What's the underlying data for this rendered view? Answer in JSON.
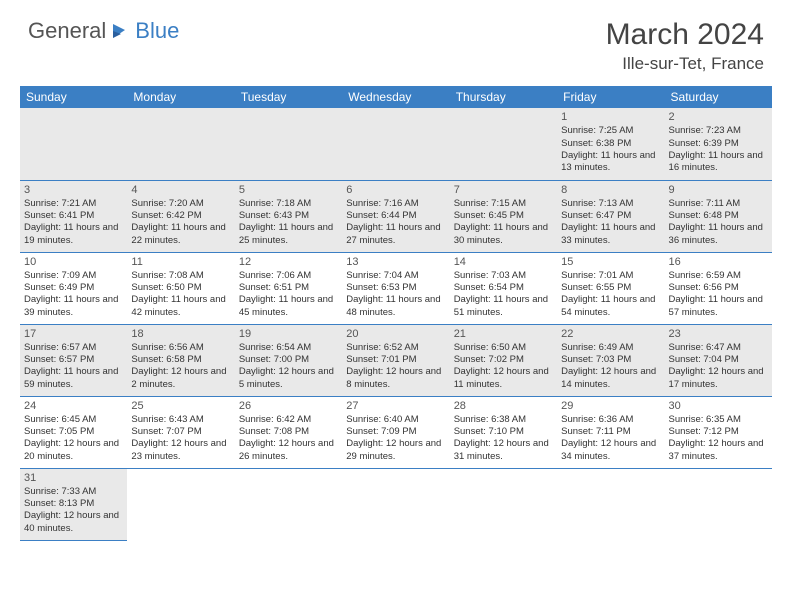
{
  "logo": {
    "part1": "General",
    "part2": "Blue"
  },
  "header": {
    "title": "March 2024",
    "location": "Ille-sur-Tet, France"
  },
  "weekdays": [
    "Sunday",
    "Monday",
    "Tuesday",
    "Wednesday",
    "Thursday",
    "Friday",
    "Saturday"
  ],
  "colors": {
    "accent": "#3b7fc4",
    "header_bg": "#3b7fc4",
    "shade1": "#e9e9e9",
    "shade2": "#f9f9f9"
  },
  "weeks": [
    {
      "shaded": true,
      "days": [
        null,
        null,
        null,
        null,
        null,
        {
          "n": "1",
          "sunrise": "7:25 AM",
          "sunset": "6:38 PM",
          "daylight": "11 hours and 13 minutes."
        },
        {
          "n": "2",
          "sunrise": "7:23 AM",
          "sunset": "6:39 PM",
          "daylight": "11 hours and 16 minutes."
        }
      ]
    },
    {
      "shaded": true,
      "days": [
        {
          "n": "3",
          "sunrise": "7:21 AM",
          "sunset": "6:41 PM",
          "daylight": "11 hours and 19 minutes."
        },
        {
          "n": "4",
          "sunrise": "7:20 AM",
          "sunset": "6:42 PM",
          "daylight": "11 hours and 22 minutes."
        },
        {
          "n": "5",
          "sunrise": "7:18 AM",
          "sunset": "6:43 PM",
          "daylight": "11 hours and 25 minutes."
        },
        {
          "n": "6",
          "sunrise": "7:16 AM",
          "sunset": "6:44 PM",
          "daylight": "11 hours and 27 minutes."
        },
        {
          "n": "7",
          "sunrise": "7:15 AM",
          "sunset": "6:45 PM",
          "daylight": "11 hours and 30 minutes."
        },
        {
          "n": "8",
          "sunrise": "7:13 AM",
          "sunset": "6:47 PM",
          "daylight": "11 hours and 33 minutes."
        },
        {
          "n": "9",
          "sunrise": "7:11 AM",
          "sunset": "6:48 PM",
          "daylight": "11 hours and 36 minutes."
        }
      ]
    },
    {
      "shaded": false,
      "days": [
        {
          "n": "10",
          "sunrise": "7:09 AM",
          "sunset": "6:49 PM",
          "daylight": "11 hours and 39 minutes."
        },
        {
          "n": "11",
          "sunrise": "7:08 AM",
          "sunset": "6:50 PM",
          "daylight": "11 hours and 42 minutes."
        },
        {
          "n": "12",
          "sunrise": "7:06 AM",
          "sunset": "6:51 PM",
          "daylight": "11 hours and 45 minutes."
        },
        {
          "n": "13",
          "sunrise": "7:04 AM",
          "sunset": "6:53 PM",
          "daylight": "11 hours and 48 minutes."
        },
        {
          "n": "14",
          "sunrise": "7:03 AM",
          "sunset": "6:54 PM",
          "daylight": "11 hours and 51 minutes."
        },
        {
          "n": "15",
          "sunrise": "7:01 AM",
          "sunset": "6:55 PM",
          "daylight": "11 hours and 54 minutes."
        },
        {
          "n": "16",
          "sunrise": "6:59 AM",
          "sunset": "6:56 PM",
          "daylight": "11 hours and 57 minutes."
        }
      ]
    },
    {
      "shaded": true,
      "days": [
        {
          "n": "17",
          "sunrise": "6:57 AM",
          "sunset": "6:57 PM",
          "daylight": "11 hours and 59 minutes."
        },
        {
          "n": "18",
          "sunrise": "6:56 AM",
          "sunset": "6:58 PM",
          "daylight": "12 hours and 2 minutes."
        },
        {
          "n": "19",
          "sunrise": "6:54 AM",
          "sunset": "7:00 PM",
          "daylight": "12 hours and 5 minutes."
        },
        {
          "n": "20",
          "sunrise": "6:52 AM",
          "sunset": "7:01 PM",
          "daylight": "12 hours and 8 minutes."
        },
        {
          "n": "21",
          "sunrise": "6:50 AM",
          "sunset": "7:02 PM",
          "daylight": "12 hours and 11 minutes."
        },
        {
          "n": "22",
          "sunrise": "6:49 AM",
          "sunset": "7:03 PM",
          "daylight": "12 hours and 14 minutes."
        },
        {
          "n": "23",
          "sunrise": "6:47 AM",
          "sunset": "7:04 PM",
          "daylight": "12 hours and 17 minutes."
        }
      ]
    },
    {
      "shaded": false,
      "days": [
        {
          "n": "24",
          "sunrise": "6:45 AM",
          "sunset": "7:05 PM",
          "daylight": "12 hours and 20 minutes."
        },
        {
          "n": "25",
          "sunrise": "6:43 AM",
          "sunset": "7:07 PM",
          "daylight": "12 hours and 23 minutes."
        },
        {
          "n": "26",
          "sunrise": "6:42 AM",
          "sunset": "7:08 PM",
          "daylight": "12 hours and 26 minutes."
        },
        {
          "n": "27",
          "sunrise": "6:40 AM",
          "sunset": "7:09 PM",
          "daylight": "12 hours and 29 minutes."
        },
        {
          "n": "28",
          "sunrise": "6:38 AM",
          "sunset": "7:10 PM",
          "daylight": "12 hours and 31 minutes."
        },
        {
          "n": "29",
          "sunrise": "6:36 AM",
          "sunset": "7:11 PM",
          "daylight": "12 hours and 34 minutes."
        },
        {
          "n": "30",
          "sunrise": "6:35 AM",
          "sunset": "7:12 PM",
          "daylight": "12 hours and 37 minutes."
        }
      ]
    },
    {
      "shaded": true,
      "last": true,
      "days": [
        {
          "n": "31",
          "sunrise": "7:33 AM",
          "sunset": "8:13 PM",
          "daylight": "12 hours and 40 minutes."
        },
        null,
        null,
        null,
        null,
        null,
        null
      ]
    }
  ],
  "labels": {
    "sunrise": "Sunrise:",
    "sunset": "Sunset:",
    "daylight": "Daylight:"
  }
}
